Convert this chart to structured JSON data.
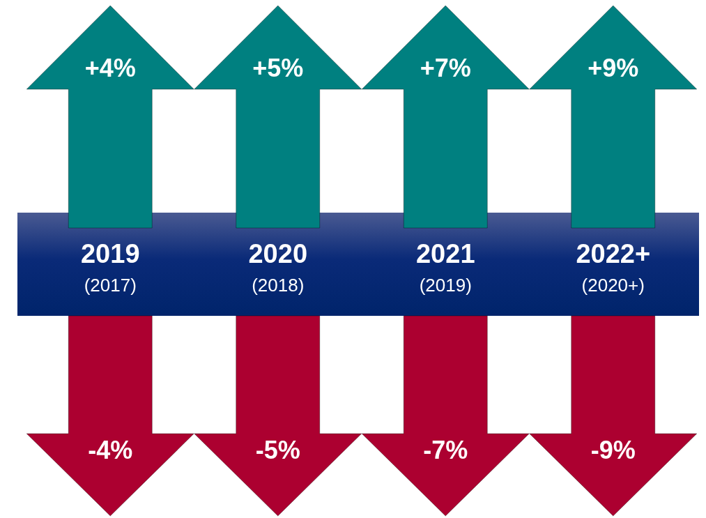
{
  "chart_data": {
    "type": "other",
    "categories": [
      "2019\n(2017)",
      "2020\n(2018)",
      "2021\n(2019)",
      "2022+\n(2020+)"
    ],
    "series": [
      {
        "color": "#008080",
        "values": [
          4,
          5,
          7,
          9
        ],
        "value_labels": [
          "+4%",
          "+5%",
          "+7%",
          "+9%"
        ]
      },
      {
        "color": "#ac0030",
        "values": [
          -4,
          -5,
          -7,
          -9
        ],
        "value_labels": [
          "-4%",
          "-5%",
          "-7%",
          "-9%"
        ]
      }
    ],
    "legend": false
  }
}
